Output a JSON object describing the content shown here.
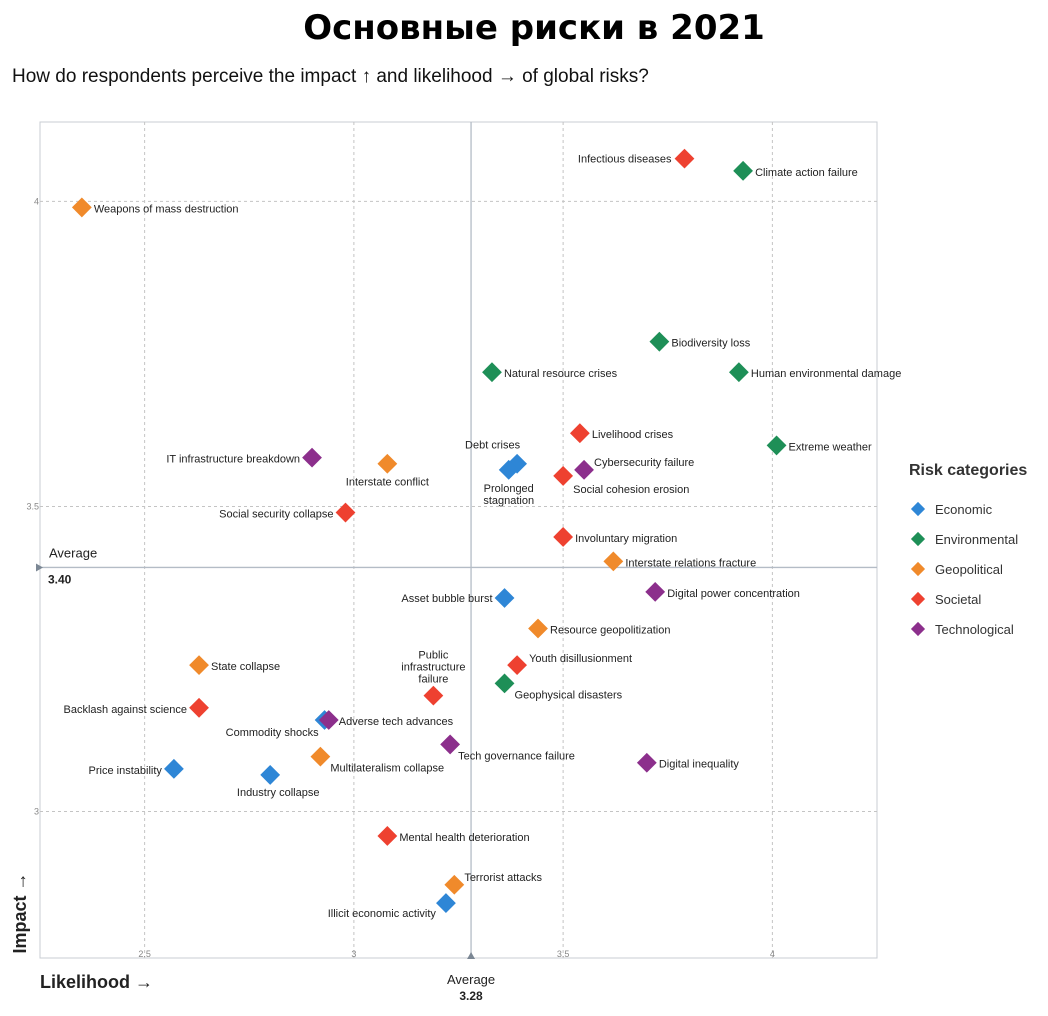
{
  "title": "Основные риски в 2021",
  "subtitle": "How do respondents perceive the impact ↑ and likelihood → of global risks?",
  "legend": {
    "title": "Risk categories",
    "items": [
      {
        "label": "Economic",
        "color": "#2e86d6"
      },
      {
        "label": "Environmental",
        "color": "#1e8f57"
      },
      {
        "label": "Geopolitical",
        "color": "#f08a2b"
      },
      {
        "label": "Societal",
        "color": "#ee4130"
      },
      {
        "label": "Technological",
        "color": "#8c2f8c"
      }
    ]
  },
  "chart_data": {
    "type": "scatter",
    "xlabel": "Likelihood →",
    "ylabel": "Impact →",
    "xlim": [
      2.25,
      4.25
    ],
    "ylim": [
      2.76,
      4.13
    ],
    "x_ticks": [
      "2.5",
      "3",
      "3.5",
      "4"
    ],
    "y_ticks": [
      "3",
      "3.5",
      "4"
    ],
    "average_x": {
      "label": "Average",
      "value": "3.28"
    },
    "average_y": {
      "label": "Average",
      "value": "3.40"
    },
    "grid": true,
    "legend_position": "right",
    "points": [
      {
        "label": "Infectious diseases",
        "category": "Societal",
        "x": 3.79,
        "y": 4.07
      },
      {
        "label": "Climate action failure",
        "category": "Environmental",
        "x": 3.93,
        "y": 4.05
      },
      {
        "label": "Weapons of mass destruction",
        "category": "Geopolitical",
        "x": 2.35,
        "y": 3.99
      },
      {
        "label": "Biodiversity loss",
        "category": "Environmental",
        "x": 3.73,
        "y": 3.77
      },
      {
        "label": "Natural resource crises",
        "category": "Environmental",
        "x": 3.33,
        "y": 3.72
      },
      {
        "label": "Human environmental damage",
        "category": "Environmental",
        "x": 3.92,
        "y": 3.72
      },
      {
        "label": "Livelihood crises",
        "category": "Societal",
        "x": 3.54,
        "y": 3.62
      },
      {
        "label": "Extreme weather",
        "category": "Environmental",
        "x": 4.01,
        "y": 3.6
      },
      {
        "label": "Debt crises",
        "category": "Economic",
        "x": 3.39,
        "y": 3.57
      },
      {
        "label": "Prolonged stagnation",
        "category": "Economic",
        "x": 3.37,
        "y": 3.56
      },
      {
        "label": "Cybersecurity failure",
        "category": "Technological",
        "x": 3.55,
        "y": 3.56
      },
      {
        "label": "Social cohesion erosion",
        "category": "Societal",
        "x": 3.5,
        "y": 3.55
      },
      {
        "label": "IT infrastructure breakdown",
        "category": "Technological",
        "x": 2.9,
        "y": 3.58
      },
      {
        "label": "Interstate conflict",
        "category": "Geopolitical",
        "x": 3.08,
        "y": 3.57
      },
      {
        "label": "Social security collapse",
        "category": "Societal",
        "x": 2.98,
        "y": 3.49
      },
      {
        "label": "Involuntary migration",
        "category": "Societal",
        "x": 3.5,
        "y": 3.45
      },
      {
        "label": "Interstate relations fracture",
        "category": "Geopolitical",
        "x": 3.62,
        "y": 3.41
      },
      {
        "label": "Digital power concentration",
        "category": "Technological",
        "x": 3.72,
        "y": 3.36
      },
      {
        "label": "Asset bubble burst",
        "category": "Economic",
        "x": 3.36,
        "y": 3.35
      },
      {
        "label": "Resource geopolitization",
        "category": "Geopolitical",
        "x": 3.44,
        "y": 3.3
      },
      {
        "label": "State collapse",
        "category": "Geopolitical",
        "x": 2.63,
        "y": 3.24
      },
      {
        "label": "Youth disillusionment",
        "category": "Societal",
        "x": 3.39,
        "y": 3.24
      },
      {
        "label": "Public infrastructure failure",
        "category": "Societal",
        "x": 3.19,
        "y": 3.19
      },
      {
        "label": "Geophysical disasters",
        "category": "Environmental",
        "x": 3.36,
        "y": 3.21
      },
      {
        "label": "Backlash against science",
        "category": "Societal",
        "x": 2.63,
        "y": 3.17
      },
      {
        "label": "Commodity shocks",
        "category": "Economic",
        "x": 2.93,
        "y": 3.15
      },
      {
        "label": "Adverse tech advances",
        "category": "Technological",
        "x": 2.94,
        "y": 3.15
      },
      {
        "label": "Tech governance failure",
        "category": "Technological",
        "x": 3.23,
        "y": 3.11
      },
      {
        "label": "Multilateralism collapse",
        "category": "Geopolitical",
        "x": 2.92,
        "y": 3.09
      },
      {
        "label": "Price instability",
        "category": "Economic",
        "x": 2.57,
        "y": 3.07
      },
      {
        "label": "Industry collapse",
        "category": "Economic",
        "x": 2.8,
        "y": 3.06
      },
      {
        "label": "Digital inequality",
        "category": "Technological",
        "x": 3.7,
        "y": 3.08
      },
      {
        "label": "Mental health deterioration",
        "category": "Societal",
        "x": 3.08,
        "y": 2.96
      },
      {
        "label": "Terrorist attacks",
        "category": "Geopolitical",
        "x": 3.24,
        "y": 2.88
      },
      {
        "label": "Illicit economic activity",
        "category": "Economic",
        "x": 3.22,
        "y": 2.85
      }
    ]
  }
}
